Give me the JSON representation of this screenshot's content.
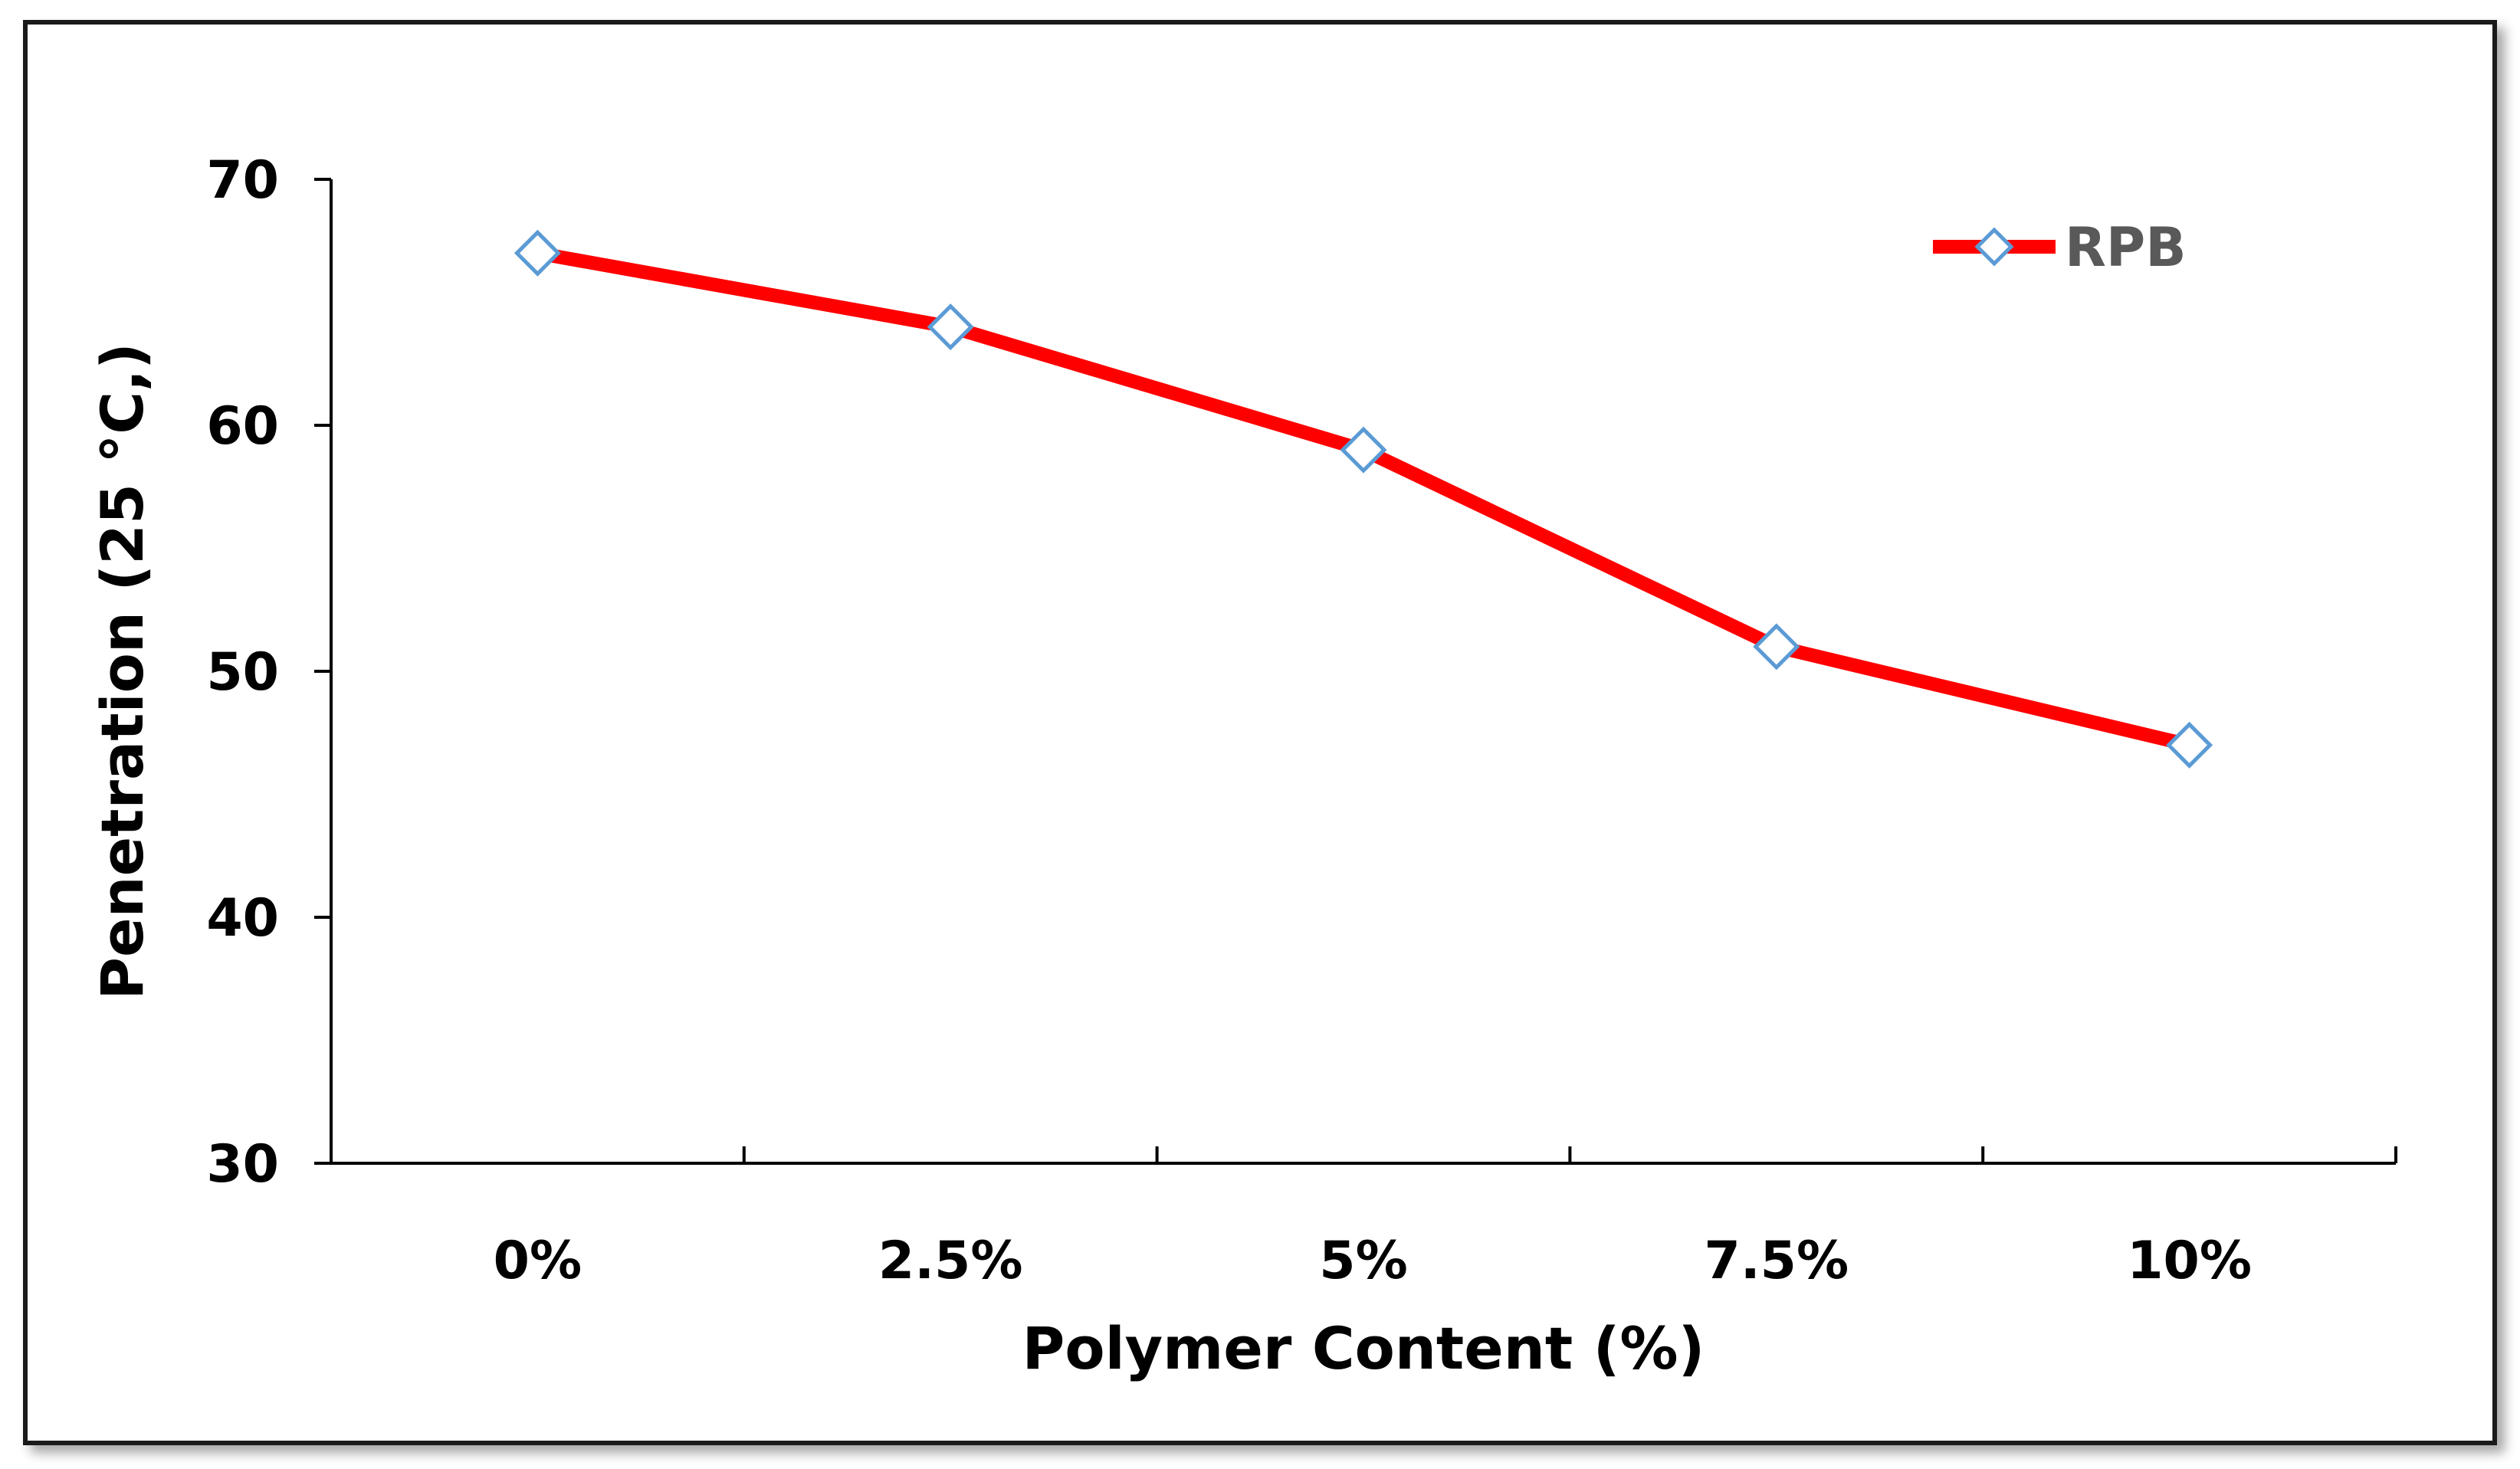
{
  "chart_data": {
    "type": "line",
    "categories": [
      "0%",
      "2.5%",
      "5%",
      "7.5%",
      "10%"
    ],
    "series": [
      {
        "name": "RPB",
        "values": [
          67,
          64,
          59,
          51,
          47
        ],
        "line_color": "#ff0000",
        "marker": "diamond",
        "marker_color": "#5b9bd5"
      }
    ],
    "xlabel": "Polymer Content (%)",
    "ylabel": "Penetration (25 °C,)",
    "ylim": [
      30,
      70
    ],
    "yticks": [
      30,
      40,
      50,
      60,
      70
    ],
    "grid": false,
    "legend_position": "top-right"
  }
}
